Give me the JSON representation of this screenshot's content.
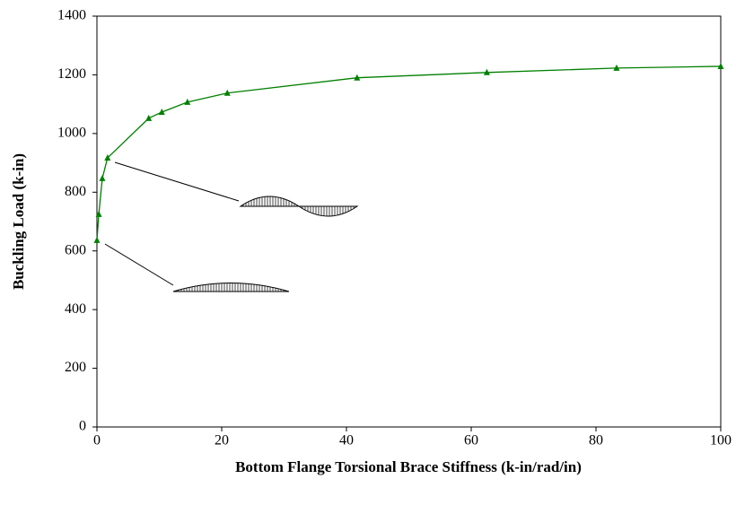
{
  "chart_data": {
    "type": "line",
    "x_label": "Bottom Flange Torsional Brace Stiffness (k-in/rad/in)",
    "y_label": "Buckling Load (k-in)",
    "x": [
      0,
      0.3,
      0.86,
      1.7,
      8.3,
      10.4,
      14.5,
      20.9,
      41.7,
      62.5,
      83.3,
      100
    ],
    "series": [
      {
        "color": "#008000",
        "values": [
          636,
          725,
          847,
          917,
          1052,
          1073,
          1107,
          1138,
          1190,
          1208,
          1223,
          1229
        ]
      }
    ],
    "xlim": [
      0,
      100
    ],
    "xticks": [
      0,
      20,
      40,
      60,
      80,
      100
    ],
    "ylim": [
      0,
      1400
    ],
    "yticks": [
      0,
      200,
      400,
      600,
      800,
      1000,
      1200,
      1400
    ],
    "grid": false
  }
}
